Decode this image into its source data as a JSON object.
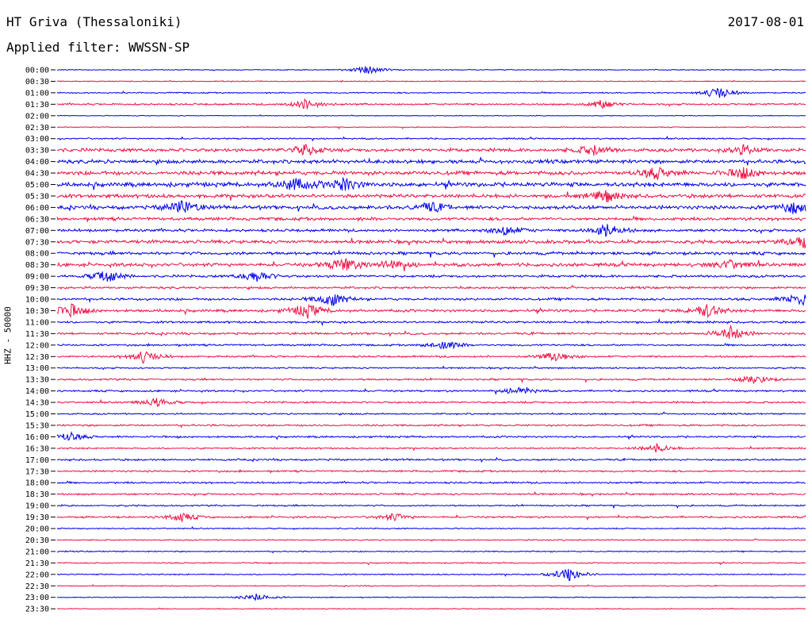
{
  "header": {
    "station": "HT Griva (Thessaloniki)",
    "date": "2017-08-01",
    "filter": "Applied filter: WWSSN-SP"
  },
  "axis": {
    "channel_label": "HHZ - 50000"
  },
  "colors": {
    "trace_even": "#0000ee",
    "trace_odd": "#ee1144"
  },
  "chart_data": {
    "type": "line",
    "title": "HT Griva (Thessaloniki)",
    "subtitle": "Applied filter: WWSSN-SP",
    "ylabel": "HHZ - 50000",
    "rows": [
      "00:00",
      "00:30",
      "01:00",
      "01:30",
      "02:00",
      "02:30",
      "03:00",
      "03:30",
      "04:00",
      "04:30",
      "05:00",
      "05:30",
      "06:00",
      "06:30",
      "07:00",
      "07:30",
      "08:00",
      "08:30",
      "09:00",
      "09:30",
      "10:00",
      "10:30",
      "11:00",
      "11:30",
      "12:00",
      "12:30",
      "13:00",
      "13:30",
      "14:00",
      "14:30",
      "15:00",
      "15:30",
      "16:00",
      "16:30",
      "17:00",
      "17:30",
      "18:00",
      "18:30",
      "19:00",
      "19:30",
      "20:00",
      "20:30",
      "21:00",
      "21:30",
      "22:00",
      "22:30",
      "23:00",
      "23:30"
    ],
    "activity": [
      0.15,
      0.15,
      0.2,
      0.3,
      0.12,
      0.15,
      0.25,
      0.55,
      0.6,
      0.65,
      0.7,
      0.6,
      0.6,
      0.5,
      0.45,
      0.55,
      0.5,
      0.55,
      0.4,
      0.35,
      0.4,
      0.45,
      0.35,
      0.35,
      0.3,
      0.3,
      0.25,
      0.3,
      0.3,
      0.3,
      0.25,
      0.3,
      0.3,
      0.25,
      0.3,
      0.3,
      0.3,
      0.3,
      0.25,
      0.3,
      0.2,
      0.2,
      0.2,
      0.2,
      0.2,
      0.15,
      0.15,
      0.15
    ],
    "events": [
      {
        "row": 0,
        "minute": 12.5,
        "amp": 0.6
      },
      {
        "row": 2,
        "minute": 26.5,
        "amp": 0.9
      },
      {
        "row": 3,
        "minute": 10.0,
        "amp": 0.7
      },
      {
        "row": 3,
        "minute": 21.8,
        "amp": 0.6
      },
      {
        "row": 7,
        "minute": 10.0,
        "amp": 0.8
      },
      {
        "row": 7,
        "minute": 21.5,
        "amp": 0.7
      },
      {
        "row": 7,
        "minute": 27.5,
        "amp": 0.6
      },
      {
        "row": 9,
        "minute": 24.0,
        "amp": 0.8
      },
      {
        "row": 9,
        "minute": 27.5,
        "amp": 0.8
      },
      {
        "row": 10,
        "minute": 9.5,
        "amp": 0.9
      },
      {
        "row": 10,
        "minute": 11.5,
        "amp": 0.9
      },
      {
        "row": 11,
        "minute": 22.0,
        "amp": 0.8
      },
      {
        "row": 12,
        "minute": 5.0,
        "amp": 1.0
      },
      {
        "row": 12,
        "minute": 15.0,
        "amp": 0.7
      },
      {
        "row": 12,
        "minute": 29.5,
        "amp": 0.8
      },
      {
        "row": 14,
        "minute": 18.0,
        "amp": 0.7
      },
      {
        "row": 14,
        "minute": 22.0,
        "amp": 0.9
      },
      {
        "row": 15,
        "minute": 30.0,
        "amp": 1.0
      },
      {
        "row": 17,
        "minute": 11.5,
        "amp": 1.0
      },
      {
        "row": 17,
        "minute": 13.5,
        "amp": 0.8
      },
      {
        "row": 17,
        "minute": 27.0,
        "amp": 0.7
      },
      {
        "row": 18,
        "minute": 2.0,
        "amp": 0.9
      },
      {
        "row": 18,
        "minute": 8.0,
        "amp": 0.8
      },
      {
        "row": 20,
        "minute": 11.0,
        "amp": 1.0
      },
      {
        "row": 20,
        "minute": 29.8,
        "amp": 1.0
      },
      {
        "row": 21,
        "minute": 0.5,
        "amp": 1.0
      },
      {
        "row": 21,
        "minute": 10.0,
        "amp": 1.0
      },
      {
        "row": 21,
        "minute": 26.0,
        "amp": 1.0
      },
      {
        "row": 23,
        "minute": 27.0,
        "amp": 1.0
      },
      {
        "row": 24,
        "minute": 15.5,
        "amp": 0.7
      },
      {
        "row": 25,
        "minute": 3.5,
        "amp": 0.9
      },
      {
        "row": 25,
        "minute": 20.0,
        "amp": 0.7
      },
      {
        "row": 27,
        "minute": 28.0,
        "amp": 0.6
      },
      {
        "row": 28,
        "minute": 18.5,
        "amp": 0.6
      },
      {
        "row": 29,
        "minute": 4.0,
        "amp": 0.6
      },
      {
        "row": 32,
        "minute": 0.5,
        "amp": 0.6
      },
      {
        "row": 33,
        "minute": 24.0,
        "amp": 0.6
      },
      {
        "row": 39,
        "minute": 5.0,
        "amp": 0.6
      },
      {
        "row": 39,
        "minute": 13.5,
        "amp": 0.5
      },
      {
        "row": 44,
        "minute": 20.5,
        "amp": 1.0
      },
      {
        "row": 46,
        "minute": 8.0,
        "amp": 0.5
      }
    ]
  }
}
